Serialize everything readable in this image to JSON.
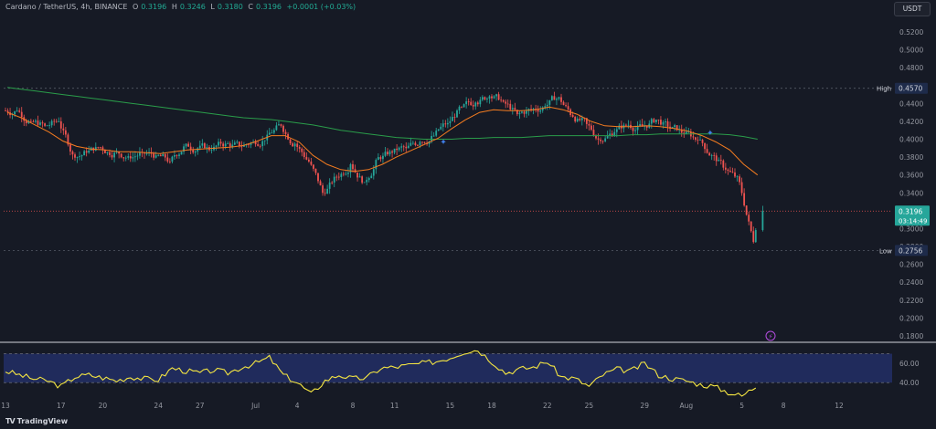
{
  "header": {
    "symbol": "Cardano / TetherUS, 4h, BINANCE",
    "open_label": "O",
    "open": "0.3196",
    "high_label": "H",
    "high": "0.3246",
    "low_label": "L",
    "low": "0.3180",
    "close_label": "C",
    "close": "0.3196",
    "change": "+0.0001 (+0.03%)"
  },
  "currency": "USDT",
  "brand": {
    "logo": "TV",
    "name": "TradingView"
  },
  "price_axis": {
    "ticks": [
      "0.5200",
      "0.5000",
      "0.4800",
      "0.4600",
      "0.4400",
      "0.4200",
      "0.4000",
      "0.3800",
      "0.3600",
      "0.3400",
      "0.3200",
      "0.3000",
      "0.2800",
      "0.2600",
      "0.2400",
      "0.2200",
      "0.2000",
      "0.1800"
    ]
  },
  "markers": {
    "high_label": "High",
    "high_value": "0.4570",
    "low_label": "Low",
    "low_value": "0.2756",
    "last_price": "0.3196",
    "countdown": "03:14:49"
  },
  "rsi_axis": {
    "ticks": [
      "60.00",
      "40.00"
    ]
  },
  "x_axis": {
    "ticks": [
      "13",
      "17",
      "20",
      "24",
      "27",
      "Jul",
      "4",
      "8",
      "11",
      "15",
      "18",
      "22",
      "25",
      "29",
      "Aug",
      "5",
      "8",
      "12"
    ]
  },
  "colors": {
    "background": "#161a25",
    "up": "#26a69a",
    "down": "#ef5350",
    "ema_fast": "#f57c20",
    "ema_slow": "#2a9d4a",
    "rsi": "#f5e642",
    "rsi_band": "#2a3a8a",
    "last_price_tag": "#26a69a"
  },
  "chart_data": {
    "type": "candlestick",
    "title": "Cardano / TetherUS, 4h, BINANCE",
    "x_ticks": [
      "13",
      "17",
      "20",
      "24",
      "27",
      "Jul",
      "4",
      "8",
      "11",
      "15",
      "18",
      "22",
      "25",
      "29",
      "Aug",
      "5",
      "8",
      "12"
    ],
    "y_range": [
      0.17,
      0.53
    ],
    "price_path_daily_closes": [
      {
        "x": "13",
        "close": 0.432
      },
      {
        "x": "14",
        "close": 0.42
      },
      {
        "x": "15",
        "close": 0.415
      },
      {
        "x": "16",
        "close": 0.42
      },
      {
        "x": "17",
        "close": 0.383
      },
      {
        "x": "18",
        "close": 0.385
      },
      {
        "x": "19",
        "close": 0.391
      },
      {
        "x": "20",
        "close": 0.385
      },
      {
        "x": "21",
        "close": 0.381
      },
      {
        "x": "22",
        "close": 0.385
      },
      {
        "x": "23",
        "close": 0.382
      },
      {
        "x": "24",
        "close": 0.375
      },
      {
        "x": "25",
        "close": 0.392
      },
      {
        "x": "26",
        "close": 0.39
      },
      {
        "x": "27",
        "close": 0.388
      },
      {
        "x": "28",
        "close": 0.395
      },
      {
        "x": "29",
        "close": 0.392
      },
      {
        "x": "30",
        "close": 0.397
      },
      {
        "x": "Jul",
        "close": 0.405
      },
      {
        "x": "2",
        "close": 0.415
      },
      {
        "x": "3",
        "close": 0.395
      },
      {
        "x": "4",
        "close": 0.375
      },
      {
        "x": "5",
        "close": 0.34
      },
      {
        "x": "6",
        "close": 0.358
      },
      {
        "x": "7",
        "close": 0.372
      },
      {
        "x": "8",
        "close": 0.352
      },
      {
        "x": "9",
        "close": 0.38
      },
      {
        "x": "10",
        "close": 0.385
      },
      {
        "x": "11",
        "close": 0.39
      },
      {
        "x": "12",
        "close": 0.397
      },
      {
        "x": "13",
        "close": 0.404
      },
      {
        "x": "14",
        "close": 0.418
      },
      {
        "x": "15",
        "close": 0.436
      },
      {
        "x": "16",
        "close": 0.441
      },
      {
        "x": "17",
        "close": 0.448
      },
      {
        "x": "18",
        "close": 0.442
      },
      {
        "x": "19",
        "close": 0.428
      },
      {
        "x": "20",
        "close": 0.433
      },
      {
        "x": "21",
        "close": 0.437
      },
      {
        "x": "22",
        "close": 0.447
      },
      {
        "x": "23",
        "close": 0.425
      },
      {
        "x": "24",
        "close": 0.417
      },
      {
        "x": "25",
        "close": 0.398
      },
      {
        "x": "26",
        "close": 0.408
      },
      {
        "x": "27",
        "close": 0.416
      },
      {
        "x": "28",
        "close": 0.414
      },
      {
        "x": "29",
        "close": 0.422
      },
      {
        "x": "30",
        "close": 0.412
      },
      {
        "x": "31",
        "close": 0.406
      },
      {
        "x": "Aug",
        "close": 0.399
      },
      {
        "x": "2",
        "close": 0.382
      },
      {
        "x": "3",
        "close": 0.366
      },
      {
        "x": "4",
        "close": 0.352
      },
      {
        "x": "5",
        "close": 0.285
      },
      {
        "x": "5.5",
        "close": 0.3196
      }
    ],
    "ema_fast": [
      0.43,
      0.424,
      0.416,
      0.408,
      0.398,
      0.392,
      0.389,
      0.388,
      0.386,
      0.386,
      0.385,
      0.384,
      0.386,
      0.388,
      0.389,
      0.39,
      0.391,
      0.393,
      0.398,
      0.404,
      0.404,
      0.397,
      0.382,
      0.372,
      0.366,
      0.364,
      0.366,
      0.372,
      0.38,
      0.387,
      0.394,
      0.401,
      0.412,
      0.422,
      0.43,
      0.433,
      0.432,
      0.432,
      0.433,
      0.436,
      0.433,
      0.428,
      0.42,
      0.415,
      0.414,
      0.414,
      0.415,
      0.414,
      0.412,
      0.409,
      0.404,
      0.397,
      0.388,
      0.372,
      0.36
    ],
    "ema_slow": [
      0.458,
      0.456,
      0.454,
      0.452,
      0.45,
      0.448,
      0.446,
      0.444,
      0.442,
      0.44,
      0.438,
      0.436,
      0.434,
      0.432,
      0.43,
      0.428,
      0.426,
      0.424,
      0.423,
      0.422,
      0.42,
      0.418,
      0.416,
      0.413,
      0.41,
      0.408,
      0.406,
      0.404,
      0.402,
      0.401,
      0.4,
      0.4,
      0.4,
      0.401,
      0.401,
      0.402,
      0.402,
      0.402,
      0.403,
      0.404,
      0.404,
      0.404,
      0.404,
      0.404,
      0.404,
      0.405,
      0.405,
      0.406,
      0.406,
      0.406,
      0.406,
      0.406,
      0.405,
      0.403,
      0.4
    ],
    "high": {
      "label": "High",
      "value": 0.457
    },
    "low": {
      "label": "Low",
      "value": 0.2756
    },
    "last_price": 0.3196,
    "rsi": {
      "band": [
        40,
        70
      ],
      "ticks": [
        60,
        40
      ],
      "values": [
        52,
        48,
        44,
        42,
        36,
        46,
        48,
        45,
        42,
        46,
        44,
        43,
        55,
        52,
        50,
        53,
        50,
        56,
        60,
        66,
        48,
        40,
        28,
        42,
        48,
        44,
        45,
        55,
        56,
        58,
        60,
        62,
        66,
        72,
        74,
        62,
        50,
        54,
        56,
        62,
        46,
        44,
        36,
        48,
        54,
        52,
        60,
        48,
        44,
        42,
        38,
        36,
        30,
        26,
        36
      ]
    }
  }
}
